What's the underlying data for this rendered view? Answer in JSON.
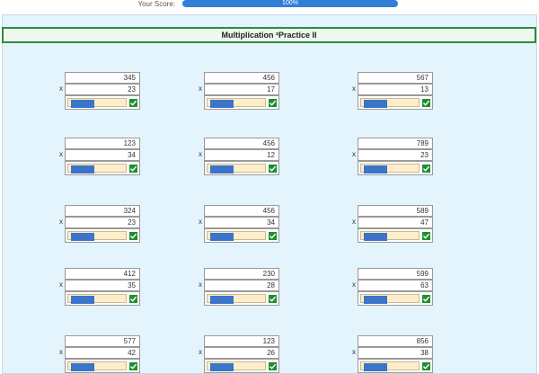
{
  "score": {
    "label": "Your Score:",
    "progress": "100%"
  },
  "title": "Multiplication ²Practice II",
  "problems": [
    [
      {
        "top": "345",
        "operator": "x",
        "bottom": "23"
      },
      {
        "top": "456",
        "operator": "x",
        "bottom": "17"
      },
      {
        "top": "567",
        "operator": "x",
        "bottom": "13"
      }
    ],
    [
      {
        "top": "123",
        "operator": "x",
        "bottom": "34"
      },
      {
        "top": "456",
        "operator": "x",
        "bottom": "12"
      },
      {
        "top": "789",
        "operator": "x",
        "bottom": "23"
      }
    ],
    [
      {
        "top": "324",
        "operator": "x",
        "bottom": "23"
      },
      {
        "top": "456",
        "operator": "x",
        "bottom": "34"
      },
      {
        "top": "589",
        "operator": "x",
        "bottom": "47"
      }
    ],
    [
      {
        "top": "412",
        "operator": "x",
        "bottom": "35"
      },
      {
        "top": "230",
        "operator": "x",
        "bottom": "28"
      },
      {
        "top": "599",
        "operator": "x",
        "bottom": "63"
      }
    ],
    [
      {
        "top": "577",
        "operator": "x",
        "bottom": "42"
      },
      {
        "top": "123",
        "operator": "x",
        "bottom": "26"
      },
      {
        "top": "856",
        "operator": "x",
        "bottom": "38"
      }
    ]
  ]
}
